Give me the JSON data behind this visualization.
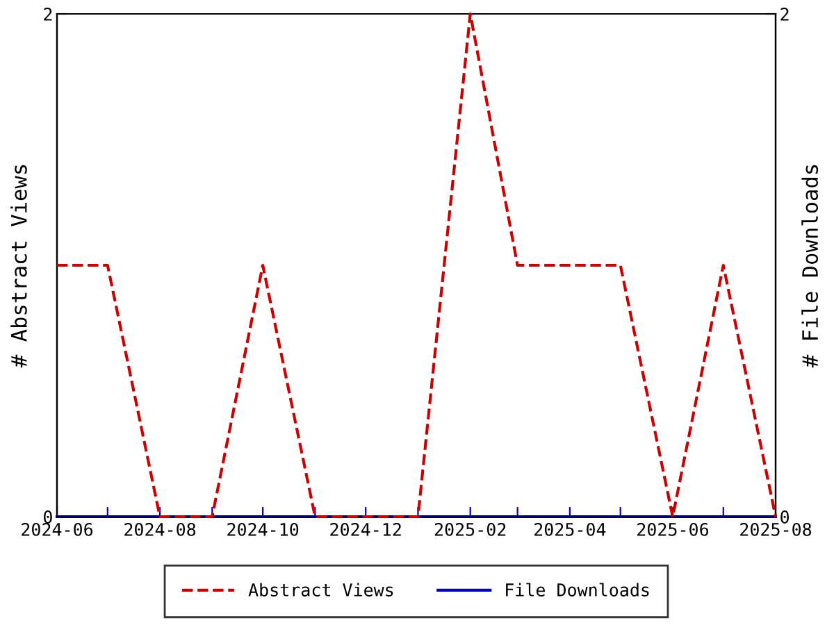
{
  "chart_data": {
    "type": "line",
    "ylabel": "# Abstract Views",
    "y2label": "# File Downloads",
    "x": [
      "2024-06",
      "2024-07",
      "2024-08",
      "2024-09",
      "2024-10",
      "2024-11",
      "2024-12",
      "2025-01",
      "2025-02",
      "2025-03",
      "2025-04",
      "2025-05",
      "2025-06",
      "2025-07",
      "2025-08"
    ],
    "series": [
      {
        "name": "Abstract Views",
        "color": "#cc0000",
        "line_style": "dashed",
        "values": [
          1,
          1,
          0,
          0,
          1,
          0,
          0,
          0,
          2,
          1,
          1,
          1,
          0,
          1,
          0
        ]
      },
      {
        "name": "File Downloads",
        "color": "#0000bb",
        "line_style": "solid",
        "axis": "y2",
        "values": [
          0,
          0,
          0,
          0,
          0,
          0,
          0,
          0,
          0,
          0,
          0,
          0,
          0,
          0,
          0
        ]
      }
    ],
    "xlim": [
      "2024-06",
      "2025-08"
    ],
    "xticks": [
      {
        "value": "2024-06",
        "label": "2024-06"
      },
      {
        "value": "2024-07",
        "label": null
      },
      {
        "value": "2024-08",
        "label": "2024-08"
      },
      {
        "value": "2024-09",
        "label": null
      },
      {
        "value": "2024-10",
        "label": "2024-10"
      },
      {
        "value": "2024-11",
        "label": null
      },
      {
        "value": "2024-12",
        "label": "2024-12"
      },
      {
        "value": "2025-01",
        "label": null
      },
      {
        "value": "2025-02",
        "label": "2025-02"
      },
      {
        "value": "2025-03",
        "label": null
      },
      {
        "value": "2025-04",
        "label": "2025-04"
      },
      {
        "value": "2025-05",
        "label": null
      },
      {
        "value": "2025-06",
        "label": "2025-06"
      },
      {
        "value": "2025-07",
        "label": null
      },
      {
        "value": "2025-08",
        "label": "2025-08"
      }
    ],
    "ylim": [
      0,
      2
    ],
    "yticks": [
      0,
      2
    ],
    "y2lim": [
      0,
      2
    ],
    "y2ticks": [
      0,
      2
    ],
    "grid": false,
    "legend": "bottom",
    "marker": "none"
  }
}
